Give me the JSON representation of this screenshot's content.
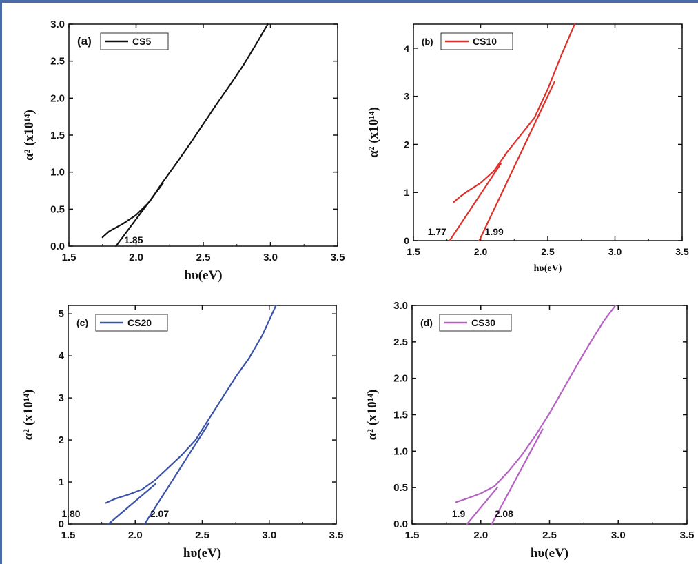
{
  "chart_data": [
    {
      "type": "line",
      "panel_label": "(a)",
      "xlabel": "hυ(eV)",
      "ylabel": "α² (x10¹⁴)",
      "xlim": [
        1.5,
        3.5
      ],
      "ylim": [
        0.0,
        3.0
      ],
      "x_ticks": [
        "1.5",
        "2.0",
        "2.5",
        "3.0",
        "3.5"
      ],
      "y_ticks": [
        "0.0",
        "0.5",
        "1.0",
        "1.5",
        "2.0",
        "2.5",
        "3.0"
      ],
      "legend": "top-left",
      "series": [
        {
          "name": "CS5",
          "color": "#111111",
          "x": [
            1.75,
            1.8,
            1.9,
            2.0,
            2.1,
            2.2,
            2.3,
            2.4,
            2.5,
            2.6,
            2.7,
            2.8,
            2.9,
            2.98
          ],
          "y": [
            0.12,
            0.2,
            0.3,
            0.42,
            0.6,
            0.87,
            1.12,
            1.38,
            1.65,
            1.92,
            2.18,
            2.45,
            2.75,
            3.0
          ]
        },
        {
          "color": "#111111",
          "x": [
            1.85,
            2.2
          ],
          "y": [
            0.0,
            0.85
          ]
        }
      ],
      "annotations": [
        "1.85"
      ]
    },
    {
      "type": "line",
      "panel_label": "(b)",
      "xlabel": "hυ(eV)",
      "ylabel": "α² (x10¹⁴)",
      "xlim": [
        1.5,
        3.5
      ],
      "ylim": [
        0,
        4.5
      ],
      "x_ticks": [
        "1.5",
        "2.0",
        "2.5",
        "3.0",
        "3.5"
      ],
      "y_ticks": [
        "0",
        "1",
        "2",
        "3",
        "4"
      ],
      "legend": "top-left",
      "series": [
        {
          "name": "CS10",
          "color": "#e0302a",
          "x": [
            1.8,
            1.85,
            1.9,
            2.0,
            2.1,
            2.2,
            2.3,
            2.4,
            2.5,
            2.6,
            2.7
          ],
          "y": [
            0.8,
            0.92,
            1.02,
            1.2,
            1.45,
            1.85,
            2.2,
            2.55,
            3.15,
            3.85,
            4.5
          ]
        },
        {
          "color": "#e0302a",
          "x": [
            1.77,
            2.15
          ],
          "y": [
            0.0,
            1.6
          ]
        },
        {
          "color": "#e0302a",
          "x": [
            1.99,
            2.55
          ],
          "y": [
            0.0,
            3.3
          ]
        }
      ],
      "annotations": [
        "1.77",
        "1.99"
      ]
    },
    {
      "type": "line",
      "panel_label": "(c)",
      "xlabel": "hυ(eV)",
      "ylabel": "α² (x10¹⁴)",
      "xlim": [
        1.5,
        3.5
      ],
      "ylim": [
        0,
        5.2
      ],
      "x_ticks": [
        "1.5",
        "2.0",
        "2.5",
        "3.0",
        "3.5"
      ],
      "y_ticks": [
        "0",
        "1",
        "2",
        "3",
        "4",
        "5"
      ],
      "legend": "top-left",
      "series": [
        {
          "name": "CS20",
          "color": "#3a52a8",
          "x": [
            1.78,
            1.85,
            1.95,
            2.05,
            2.15,
            2.25,
            2.35,
            2.45,
            2.55,
            2.65,
            2.75,
            2.85,
            2.95,
            3.05
          ],
          "y": [
            0.5,
            0.6,
            0.7,
            0.82,
            1.05,
            1.35,
            1.65,
            2.0,
            2.5,
            3.0,
            3.5,
            3.95,
            4.5,
            5.2
          ]
        },
        {
          "color": "#3a52a8",
          "x": [
            1.8,
            2.15
          ],
          "y": [
            0.0,
            0.95
          ]
        },
        {
          "color": "#3a52a8",
          "x": [
            2.07,
            2.55
          ],
          "y": [
            0.0,
            2.4
          ]
        }
      ],
      "annotations": [
        "1.80",
        "2.07"
      ]
    },
    {
      "type": "line",
      "panel_label": "(d)",
      "xlabel": "hυ(eV)",
      "ylabel": "α² (x10¹⁴)",
      "xlim": [
        1.5,
        3.5
      ],
      "ylim": [
        0.0,
        3.0
      ],
      "x_ticks": [
        "1.5",
        "2.0",
        "2.5",
        "3.0",
        "3.5"
      ],
      "y_ticks": [
        "0.0",
        "0.5",
        "1.0",
        "1.5",
        "2.0",
        "2.5",
        "3.0"
      ],
      "legend": "top-left",
      "series": [
        {
          "name": "CS30",
          "color": "#b561c4",
          "x": [
            1.82,
            1.9,
            2.0,
            2.1,
            2.2,
            2.3,
            2.4,
            2.5,
            2.6,
            2.7,
            2.8,
            2.9,
            2.98
          ],
          "y": [
            0.3,
            0.35,
            0.42,
            0.52,
            0.72,
            0.95,
            1.22,
            1.52,
            1.85,
            2.18,
            2.5,
            2.8,
            3.0
          ]
        },
        {
          "color": "#b561c4",
          "x": [
            1.9,
            2.12
          ],
          "y": [
            0.0,
            0.5
          ]
        },
        {
          "color": "#b561c4",
          "x": [
            2.08,
            2.45
          ],
          "y": [
            0.0,
            1.3
          ]
        }
      ],
      "annotations": [
        "1.9",
        "2.08"
      ]
    }
  ]
}
